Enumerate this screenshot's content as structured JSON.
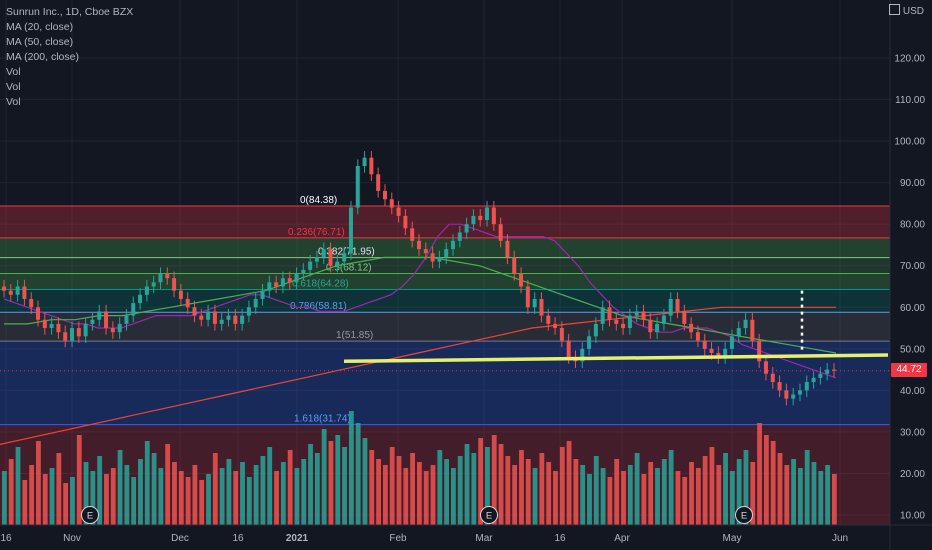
{
  "legend": {
    "title": "Sunrun Inc., 1D, Cboe BZX",
    "indicators": [
      "MA (20, close)",
      "MA (50, close)",
      "MA (200, close)",
      "Vol",
      "Vol",
      "Vol"
    ]
  },
  "currency": "USD",
  "last_price": "44.72",
  "colors": {
    "background": "#131722",
    "up": "#26a69a",
    "down": "#ef5350",
    "ma20": "#9c27b0",
    "ma50": "#4caf50",
    "ma200": "#f44336",
    "trendline": "#e6f06a",
    "fib_blue": "#2962ff"
  },
  "chart_data": {
    "type": "candlestick",
    "title": "Sunrun Inc., 1D, Cboe BZX",
    "y_axis": {
      "ticks": [
        "120.00",
        "110.00",
        "100.00",
        "90.00",
        "80.00",
        "70.00",
        "60.00",
        "50.00",
        "40.00",
        "30.00",
        "20.00",
        "10.00"
      ],
      "range": [
        6,
        128
      ],
      "unit": "USD"
    },
    "x_axis": {
      "ticks": [
        "16",
        "Nov",
        "Dec",
        "16",
        "2021",
        "Feb",
        "Mar",
        "16",
        "Apr",
        "May",
        "Jun"
      ]
    },
    "fib_levels": [
      {
        "label": "0(84.38)",
        "value": 84.38
      },
      {
        "label": "0.236(76.71)",
        "value": 76.71
      },
      {
        "label": "0.382(71.95)",
        "value": 71.95
      },
      {
        "label": "0.5(68.12)",
        "value": 68.12
      },
      {
        "label": "0.618(64.28)",
        "value": 64.28
      },
      {
        "label": "0.786(58.81)",
        "value": 58.81
      },
      {
        "label": "1(51.85)",
        "value": 51.85
      },
      {
        "label": "1.618(31.74)",
        "value": 31.74
      }
    ],
    "earnings_markers": [
      "E",
      "E",
      "E"
    ],
    "close_series": [
      64,
      63,
      65,
      62,
      60,
      57,
      55,
      56,
      54,
      52,
      55,
      53,
      56,
      57,
      59,
      55,
      54,
      56,
      58,
      61,
      63,
      65,
      66,
      68,
      67,
      64,
      62,
      60,
      58,
      57,
      59,
      56,
      57,
      58,
      56,
      58,
      60,
      62,
      64,
      66,
      65,
      67,
      66,
      68,
      69,
      71,
      72,
      74,
      70,
      71,
      73,
      84,
      94,
      96,
      92,
      88,
      86,
      84,
      82,
      79,
      76,
      74,
      73,
      71,
      72,
      74,
      76,
      78,
      80,
      82,
      81,
      84,
      80,
      76,
      72,
      68,
      65,
      60,
      62,
      58,
      56,
      55,
      52,
      48,
      47,
      50,
      53,
      56,
      60,
      57,
      56,
      55,
      58,
      59,
      57,
      54,
      56,
      58,
      62,
      59,
      56,
      54,
      52,
      50,
      49,
      48,
      50,
      53,
      55,
      57,
      52,
      47,
      44,
      42,
      40,
      38,
      39,
      40,
      42,
      43,
      44,
      45,
      44.72
    ],
    "volume_series": [
      18,
      22,
      26,
      15,
      20,
      28,
      17,
      19,
      24,
      14,
      16,
      30,
      21,
      18,
      23,
      17,
      19,
      25,
      20,
      16,
      22,
      28,
      24,
      19,
      27,
      21,
      18,
      16,
      20,
      15,
      17,
      24,
      19,
      22,
      18,
      21,
      16,
      20,
      23,
      26,
      18,
      21,
      25,
      19,
      22,
      27,
      24,
      32,
      28,
      30,
      26,
      38,
      34,
      29,
      25,
      22,
      20,
      26,
      23,
      19,
      24,
      21,
      18,
      20,
      25,
      22,
      19,
      23,
      27,
      24,
      29,
      26,
      30,
      27,
      23,
      20,
      25,
      22,
      19,
      24,
      21,
      18,
      26,
      28,
      22,
      20,
      17,
      23,
      19,
      16,
      22,
      18,
      20,
      24,
      17,
      21,
      19,
      22,
      25,
      18,
      16,
      21,
      19,
      23,
      26,
      20,
      24,
      18,
      22,
      25,
      21,
      34,
      30,
      28,
      24,
      20,
      22,
      19,
      25,
      21,
      18,
      20,
      17
    ],
    "ma20": [
      62,
      61,
      60,
      59,
      58,
      57,
      56,
      56,
      55,
      55,
      55,
      56,
      57,
      58,
      58,
      58,
      58,
      59,
      60,
      61,
      62,
      63,
      63,
      62,
      61,
      60,
      60,
      59,
      59,
      59,
      60,
      61,
      62,
      63,
      65,
      68,
      72,
      77,
      80,
      80,
      79,
      78,
      77,
      77,
      77,
      77,
      77,
      76,
      73,
      70,
      66,
      63,
      60,
      58,
      56,
      55,
      54,
      54,
      55,
      55,
      55,
      54,
      53,
      51,
      50,
      49,
      48,
      47,
      46,
      45,
      44,
      43
    ],
    "ma50": [
      56,
      56,
      57,
      57,
      58,
      58,
      59,
      60,
      61,
      62,
      63,
      64,
      66,
      68,
      70,
      71,
      72,
      72,
      72,
      71,
      70,
      68,
      66,
      64,
      62,
      60,
      58,
      57,
      56,
      55,
      54,
      53,
      52,
      51,
      50,
      49
    ],
    "ma200": [
      27,
      29,
      31,
      33,
      35,
      37,
      39,
      41,
      43,
      45,
      47,
      49,
      51,
      53,
      55,
      56,
      57,
      58,
      59,
      60,
      60,
      60,
      60
    ],
    "trendline": [
      {
        "x": "Jan",
        "y": 47
      },
      {
        "x": "Jun",
        "y": 48.5
      }
    ]
  }
}
